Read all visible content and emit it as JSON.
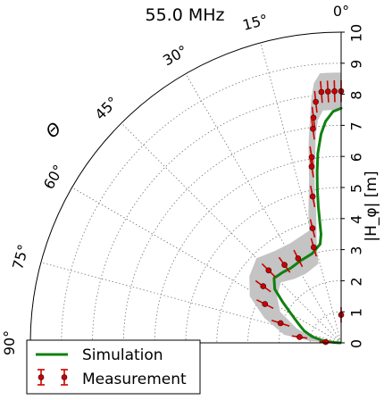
{
  "chart_data": {
    "type": "line",
    "projection": "polar-quarter",
    "title": "55.0 MHz",
    "theta_label": "Θ",
    "r_label": "|H_φ| [m]",
    "theta_zero": "top",
    "theta_direction": "counter-clockwise",
    "theta_range_deg": [
      0,
      90
    ],
    "r_range": [
      0,
      10
    ],
    "theta_ticks_deg": [
      0,
      15,
      30,
      45,
      60,
      75,
      90
    ],
    "theta_tick_labels": [
      "0°",
      "15°",
      "30°",
      "45°",
      "60°",
      "75°",
      "90°"
    ],
    "r_ticks": [
      0,
      1,
      2,
      3,
      4,
      5,
      6,
      7,
      8,
      9,
      10
    ],
    "grid": true,
    "legend_position": "lower-left",
    "series": [
      {
        "name": "Simulation",
        "style": "line",
        "color": "#108010",
        "points": [
          {
            "theta": 0.0,
            "r": 7.55
          },
          {
            "theta": 2.0,
            "r": 7.45
          },
          {
            "theta": 4.0,
            "r": 7.15
          },
          {
            "theta": 5.5,
            "r": 6.75
          },
          {
            "theta": 7.0,
            "r": 6.15
          },
          {
            "theta": 8.0,
            "r": 5.55
          },
          {
            "theta": 8.8,
            "r": 5.0
          },
          {
            "theta": 9.5,
            "r": 4.45
          },
          {
            "theta": 10.0,
            "r": 3.95
          },
          {
            "theta": 10.5,
            "r": 3.55
          },
          {
            "theta": 12.0,
            "r": 3.25
          },
          {
            "theta": 18.0,
            "r": 3.02
          },
          {
            "theta": 26.0,
            "r": 2.95
          },
          {
            "theta": 34.0,
            "r": 2.9
          },
          {
            "theta": 40.0,
            "r": 2.95
          },
          {
            "theta": 46.0,
            "r": 3.0
          },
          {
            "theta": 51.0,
            "r": 2.75
          },
          {
            "theta": 55.0,
            "r": 2.3
          },
          {
            "theta": 60.0,
            "r": 1.85
          },
          {
            "theta": 66.0,
            "r": 1.5
          },
          {
            "theta": 72.0,
            "r": 1.25
          },
          {
            "theta": 78.0,
            "r": 0.95
          },
          {
            "theta": 84.0,
            "r": 0.55
          },
          {
            "theta": 87.0,
            "r": 0.2
          },
          {
            "theta": 89.0,
            "r": 0.03
          }
        ]
      },
      {
        "name": "Measurement",
        "style": "errorbar",
        "color": "#cc0000",
        "points": [
          {
            "theta": 0.0,
            "r": 0.9,
            "err": 0.25
          },
          {
            "theta": 0.0,
            "r": 8.1,
            "err": 0.35
          },
          {
            "theta": 1.5,
            "r": 8.1,
            "err": 0.35
          },
          {
            "theta": 3.0,
            "r": 8.1,
            "err": 0.35
          },
          {
            "theta": 4.5,
            "r": 8.1,
            "err": 0.35
          },
          {
            "theta": 6.0,
            "r": 7.8,
            "err": 0.35
          },
          {
            "theta": 7.0,
            "r": 7.3,
            "err": 0.35
          },
          {
            "theta": 7.5,
            "r": 6.95,
            "err": 0.35
          },
          {
            "theta": 9.0,
            "r": 6.05,
            "err": 0.35
          },
          {
            "theta": 9.5,
            "r": 5.75,
            "err": 0.35
          },
          {
            "theta": 11.0,
            "r": 4.8,
            "err": 0.35
          },
          {
            "theta": 14.0,
            "r": 3.8,
            "err": 0.3
          },
          {
            "theta": 16.0,
            "r": 3.2,
            "err": 0.3
          },
          {
            "theta": 27.0,
            "r": 3.05,
            "err": 0.3
          },
          {
            "theta": 36.0,
            "r": 3.1,
            "err": 0.3
          },
          {
            "theta": 45.0,
            "r": 3.3,
            "err": 0.3
          },
          {
            "theta": 54.0,
            "r": 3.1,
            "err": 0.3
          },
          {
            "theta": 63.0,
            "r": 2.75,
            "err": 0.3
          },
          {
            "theta": 72.0,
            "r": 2.05,
            "err": 0.3
          },
          {
            "theta": 82.0,
            "r": 1.35,
            "err": 0.25
          },
          {
            "theta": 87.0,
            "r": 0.5,
            "err": 0.2
          }
        ]
      }
    ]
  }
}
